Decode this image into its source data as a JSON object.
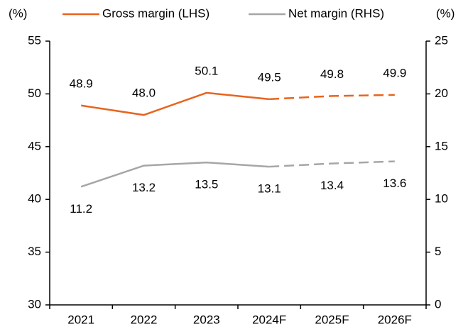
{
  "chart_data": {
    "type": "line",
    "categories": [
      "2021",
      "2022",
      "2023",
      "2024F",
      "2025F",
      "2026F"
    ],
    "ylabel": "(%)",
    "y2label": "(%)",
    "ylim": [
      30,
      55
    ],
    "yticks": [
      30,
      35,
      40,
      45,
      50,
      55
    ],
    "y2lim": [
      0,
      25
    ],
    "y2ticks": [
      0,
      5,
      10,
      15,
      20,
      25
    ],
    "dashed_from": "2024F",
    "series": [
      {
        "name": "Gross margin (LHS)",
        "color": "#e8641e",
        "values": [
          48.9,
          48.0,
          50.1,
          49.5,
          49.8,
          49.9
        ],
        "value_labels": [
          "48.9",
          "48.0",
          "50.1",
          "49.5",
          "49.8",
          "49.9"
        ],
        "axis": "y"
      },
      {
        "name": "Net margin (RHS)",
        "color": "#a6a6a6",
        "values": [
          11.2,
          13.2,
          13.5,
          13.1,
          13.4,
          13.6
        ],
        "value_labels": [
          "11.2",
          "13.2",
          "13.5",
          "13.1",
          "13.4",
          "13.6"
        ],
        "axis": "y2"
      }
    ]
  }
}
